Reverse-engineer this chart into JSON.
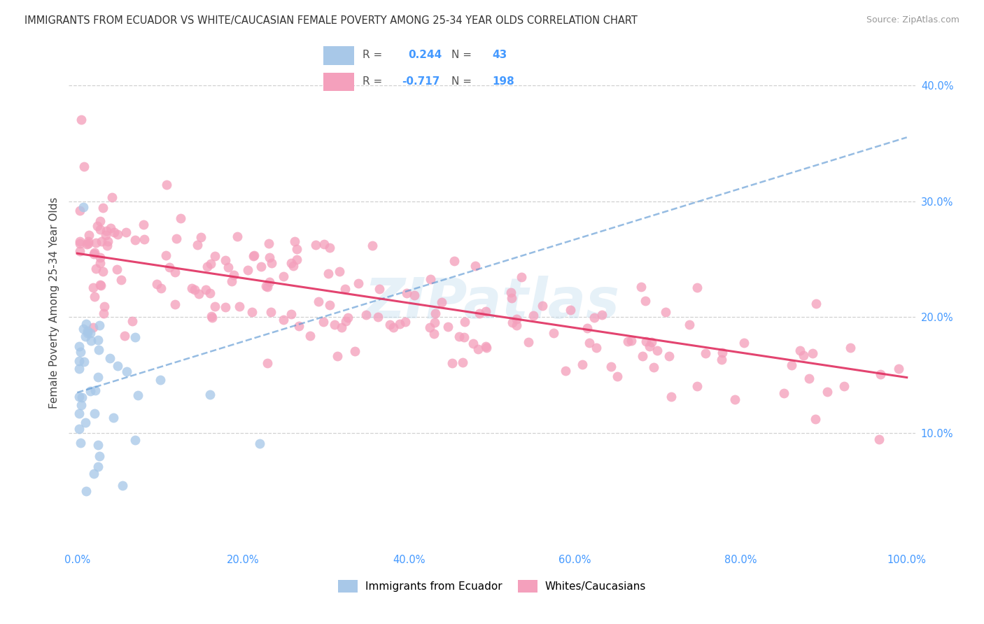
{
  "title": "IMMIGRANTS FROM ECUADOR VS WHITE/CAUCASIAN FEMALE POVERTY AMONG 25-34 YEAR OLDS CORRELATION CHART",
  "source": "Source: ZipAtlas.com",
  "ylabel": "Female Poverty Among 25-34 Year Olds",
  "xmin": 0.0,
  "xmax": 1.0,
  "ymin": 0.0,
  "ymax": 0.425,
  "xtick_labels": [
    "0.0%",
    "20.0%",
    "40.0%",
    "60.0%",
    "80.0%",
    "100.0%"
  ],
  "xtick_vals": [
    0.0,
    0.2,
    0.4,
    0.6,
    0.8,
    1.0
  ],
  "ytick_labels": [
    "10.0%",
    "20.0%",
    "30.0%",
    "40.0%"
  ],
  "ytick_vals": [
    0.1,
    0.2,
    0.3,
    0.4
  ],
  "blue_R": 0.244,
  "blue_N": 43,
  "pink_R": -0.717,
  "pink_N": 198,
  "blue_color": "#a8c8e8",
  "pink_color": "#f4a0bc",
  "blue_line_color": "#5090d0",
  "pink_line_color": "#e03060",
  "background_color": "#ffffff",
  "grid_color": "#cccccc",
  "watermark": "ZIPatlas",
  "tick_color": "#4499ff",
  "text_color": "#444444",
  "legend_blue_text_R": "0.244",
  "legend_blue_text_N": "43",
  "legend_pink_text_R": "-0.717",
  "legend_pink_text_N": "198",
  "blue_line_start_y": 0.135,
  "blue_line_end_y": 0.355,
  "pink_line_start_y": 0.255,
  "pink_line_end_y": 0.148
}
